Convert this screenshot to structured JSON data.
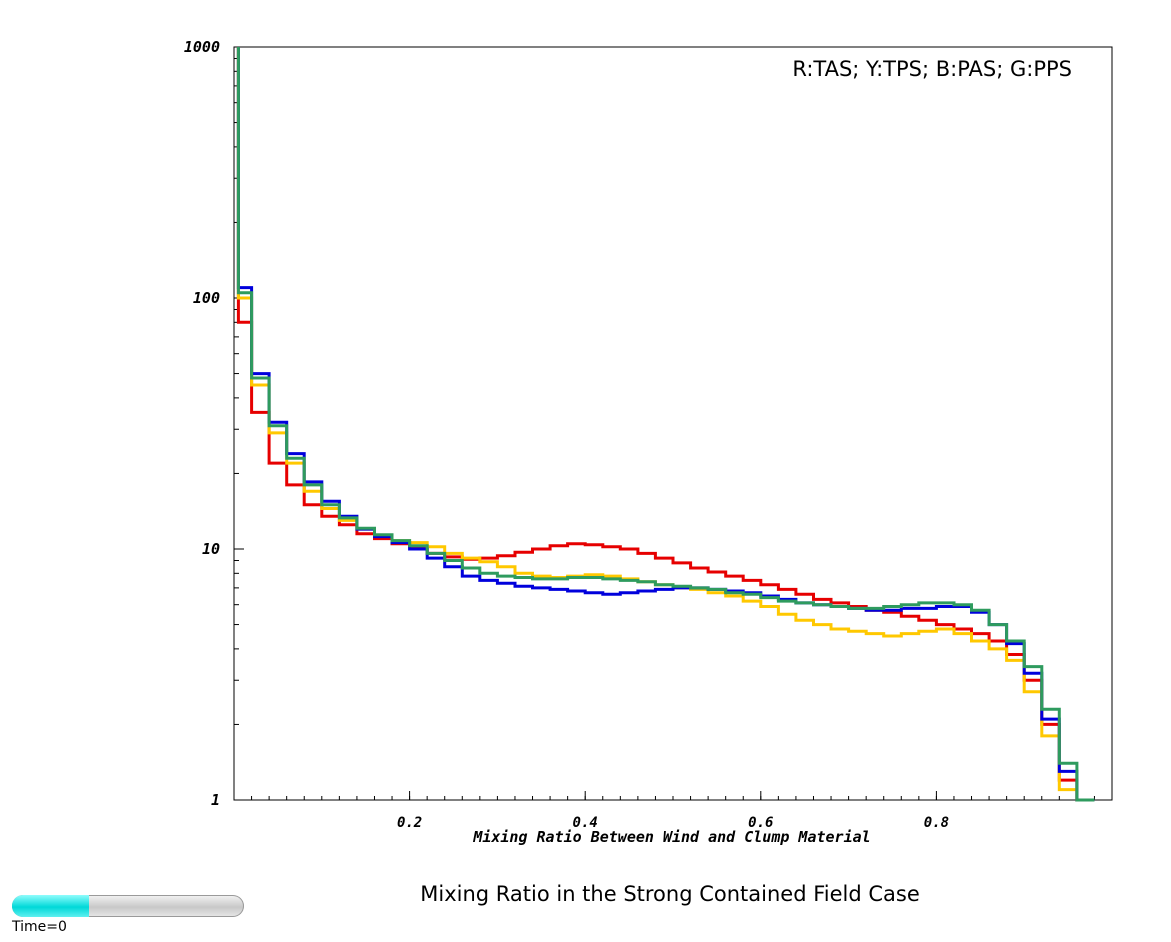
{
  "chart_data": {
    "type": "line",
    "step": true,
    "title": "Mixing Ratio in the Strong Contained Field Case",
    "xlabel": "Mixing Ratio Between Wind and Clump Material",
    "ylabel": "",
    "xlim": [
      0.0,
      1.0
    ],
    "ylim": [
      1,
      1000
    ],
    "yscale": "log",
    "grid": false,
    "x_ticks": [
      0.2,
      0.4,
      0.6,
      0.8
    ],
    "x_tick_labels": [
      "0.2",
      "0.4",
      "0.6",
      "0.8"
    ],
    "y_ticks": [
      1,
      10,
      100,
      1000
    ],
    "y_tick_labels": [
      "1",
      "10",
      "100",
      "1000"
    ],
    "legend_text": "R:TAS; Y:TPS; B:PAS; G:PPS",
    "legend_placement": "top-right",
    "x": [
      0.01,
      0.03,
      0.05,
      0.07,
      0.09,
      0.11,
      0.13,
      0.15,
      0.17,
      0.19,
      0.21,
      0.23,
      0.25,
      0.27,
      0.29,
      0.31,
      0.33,
      0.35,
      0.37,
      0.39,
      0.41,
      0.43,
      0.45,
      0.47,
      0.49,
      0.51,
      0.53,
      0.55,
      0.57,
      0.59,
      0.61,
      0.63,
      0.65,
      0.67,
      0.69,
      0.71,
      0.73,
      0.75,
      0.77,
      0.79,
      0.81,
      0.83,
      0.85,
      0.87,
      0.89,
      0.91,
      0.93,
      0.95,
      0.97
    ],
    "series": [
      {
        "name": "TAS",
        "color": "#e60000",
        "values": [
          80,
          35,
          22,
          18,
          15,
          13.5,
          12.5,
          11.5,
          11,
          10.5,
          10.2,
          9.6,
          9.3,
          9.1,
          9.2,
          9.4,
          9.7,
          10,
          10.3,
          10.5,
          10.4,
          10.2,
          10,
          9.6,
          9.2,
          8.8,
          8.4,
          8.1,
          7.8,
          7.5,
          7.2,
          6.9,
          6.6,
          6.3,
          6.1,
          5.9,
          5.7,
          5.6,
          5.4,
          5.2,
          5.0,
          4.8,
          4.6,
          4.3,
          3.8,
          3.0,
          2.0,
          1.2,
          0.9
        ]
      },
      {
        "name": "TPS",
        "color": "#ffc800",
        "values": [
          100,
          45,
          29,
          22,
          17,
          14.5,
          13,
          12,
          11.3,
          10.8,
          10.6,
          10.2,
          9.6,
          9.2,
          8.9,
          8.5,
          8.0,
          7.8,
          7.7,
          7.8,
          7.9,
          7.8,
          7.6,
          7.4,
          7.2,
          7.0,
          6.9,
          6.7,
          6.5,
          6.2,
          5.9,
          5.5,
          5.2,
          5.0,
          4.8,
          4.7,
          4.6,
          4.5,
          4.6,
          4.7,
          4.8,
          4.6,
          4.3,
          4.0,
          3.6,
          2.7,
          1.8,
          1.1,
          0.9
        ]
      },
      {
        "name": "PAS",
        "color": "#0000dc",
        "values": [
          110,
          50,
          32,
          24,
          18.5,
          15.5,
          13.5,
          12,
          11.2,
          10.6,
          10,
          9.2,
          8.5,
          7.8,
          7.5,
          7.3,
          7.1,
          7.0,
          6.9,
          6.8,
          6.7,
          6.6,
          6.7,
          6.8,
          6.9,
          7.0,
          7.0,
          6.9,
          6.8,
          6.7,
          6.5,
          6.3,
          6.1,
          6.0,
          5.9,
          5.8,
          5.7,
          5.7,
          5.8,
          5.8,
          5.9,
          5.9,
          5.6,
          5.0,
          4.2,
          3.2,
          2.1,
          1.3,
          0.9
        ]
      },
      {
        "name": "PPS",
        "color": "#2e9b5e",
        "values": [
          105,
          48,
          31,
          23,
          18,
          15,
          13.3,
          12.1,
          11.4,
          10.8,
          10.3,
          9.6,
          9.0,
          8.4,
          8.0,
          7.8,
          7.7,
          7.6,
          7.6,
          7.7,
          7.7,
          7.6,
          7.5,
          7.4,
          7.2,
          7.1,
          7.0,
          6.9,
          6.7,
          6.6,
          6.4,
          6.2,
          6.1,
          6.0,
          5.9,
          5.8,
          5.8,
          5.9,
          6.0,
          6.1,
          6.1,
          6.0,
          5.7,
          5.0,
          4.3,
          3.4,
          2.3,
          1.4,
          1.0
        ]
      }
    ],
    "spike": {
      "x": 0.005,
      "value": 1000
    }
  },
  "time_slider": {
    "label": "Time=0",
    "fraction": 0.33,
    "track_color": "#d8d8d8",
    "fill_color": "#00dcdc"
  }
}
